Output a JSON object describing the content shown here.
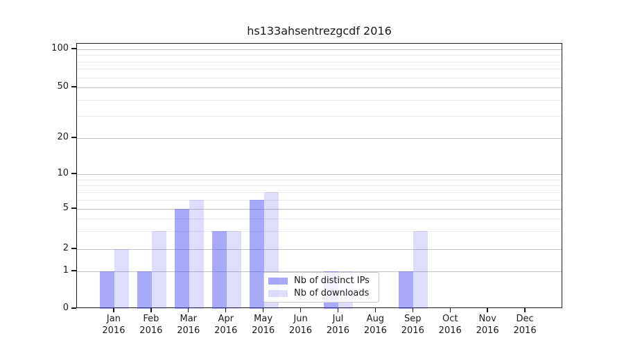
{
  "chart_data": {
    "type": "bar",
    "title": "hs133ahsentrezgcdf 2016",
    "categories": [
      "Jan",
      "Feb",
      "Mar",
      "Apr",
      "May",
      "Jun",
      "Jul",
      "Aug",
      "Sep",
      "Oct",
      "Nov",
      "Dec"
    ],
    "x_year_label": "2016",
    "series": [
      {
        "name": "Nb of distinct IPs",
        "color": "rgba(70,72,240,0.47)",
        "color_hex": "#a9aaf7",
        "values": [
          1,
          1,
          5,
          3,
          6,
          0,
          1,
          0,
          1,
          0,
          0,
          0
        ]
      },
      {
        "name": "Nb of downloads",
        "color": "rgba(70,72,240,0.18)",
        "color_hex": "#dcddfa",
        "values": [
          2,
          3,
          6,
          3,
          7,
          0,
          1,
          0,
          3,
          0,
          0,
          0
        ]
      }
    ],
    "yticks": [
      0,
      1,
      2,
      5,
      10,
      20,
      50,
      100
    ],
    "minor_yticks": [
      3,
      4,
      6,
      7,
      8,
      9,
      30,
      40,
      60,
      70,
      80,
      90
    ],
    "yscale": "log above 1, linear 0-1",
    "ylim": [
      0,
      100
    ],
    "grid": true,
    "legend_position": "lower center"
  },
  "colors": {
    "background": "#ffffff",
    "spine": "#1a1a1a",
    "grid_major": "#c4c4c4",
    "grid_minor": "#ebebeb",
    "text": "#1a1a1a",
    "legend_border": "#cccccc"
  }
}
